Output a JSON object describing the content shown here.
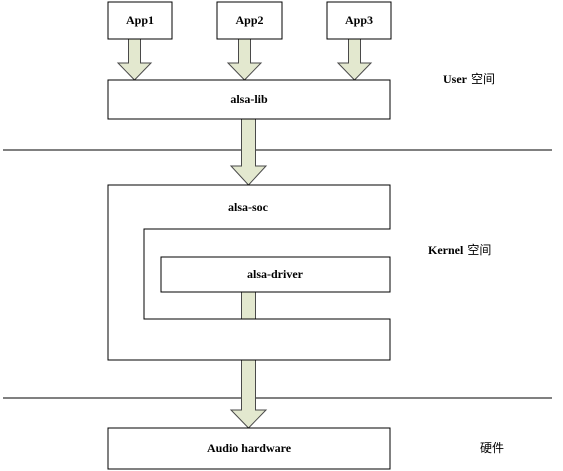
{
  "apps": [
    "App1",
    "App2",
    "App3"
  ],
  "layers": {
    "alsa_lib": "alsa-lib",
    "alsa_soc": "alsa-soc",
    "alsa_driver": "alsa-driver",
    "hardware": "Audio hardware"
  },
  "regions": {
    "user": {
      "en": "User",
      "cn": "空间"
    },
    "kernel": {
      "en": "Kernel",
      "cn": "空间"
    },
    "hardware": "硬件"
  },
  "colors": {
    "arrow_fill": "#e3e8cf",
    "arrow_stroke": "#4a4a4a",
    "line": "#000000"
  }
}
